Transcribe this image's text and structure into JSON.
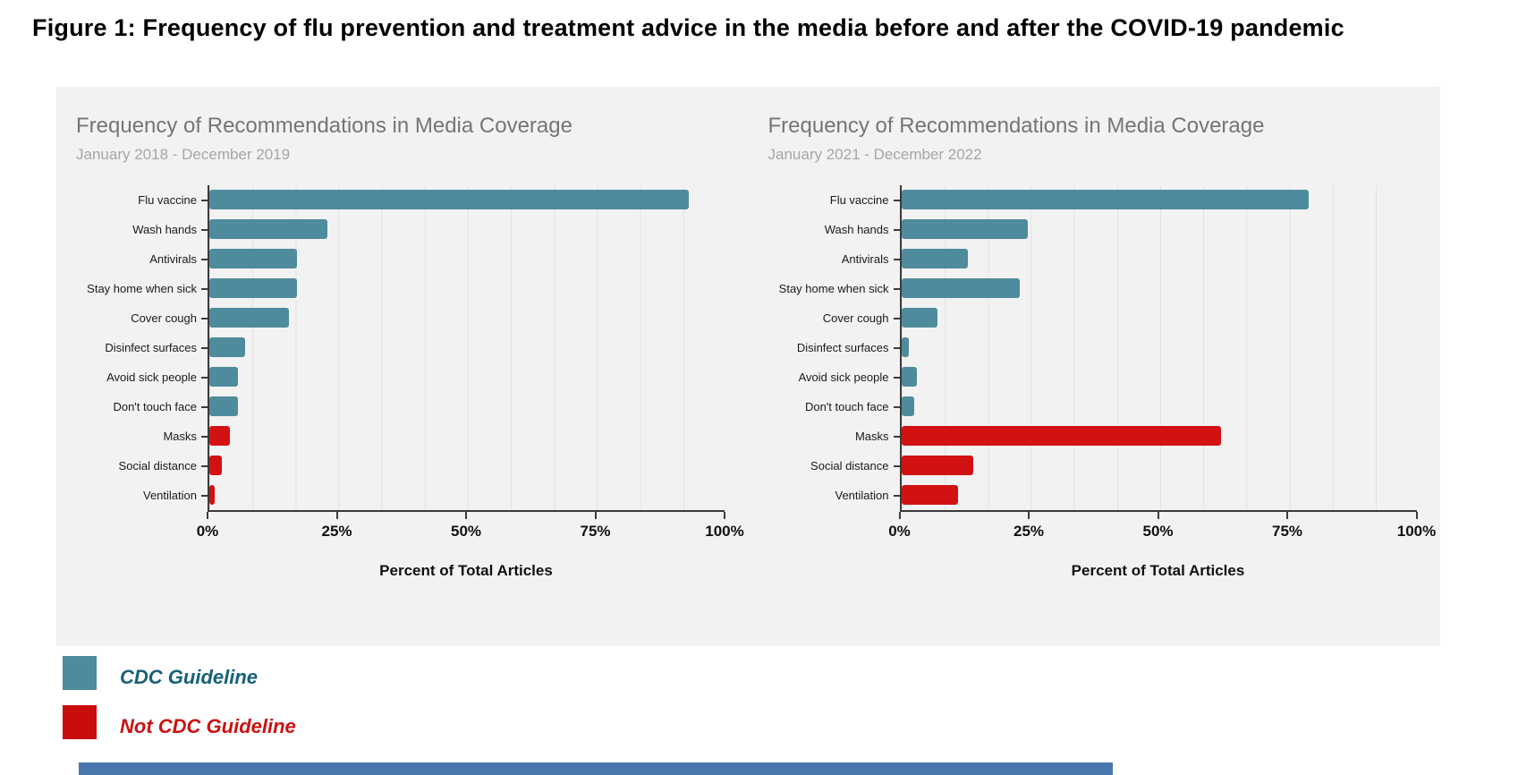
{
  "figure_title": "Figure 1: Frequency of flu prevention and treatment advice in the media before and after the COVID-19 pandemic",
  "colors": {
    "cdc": "#4e8b9c",
    "not_cdc": "#d21212",
    "panel_bg": "#f2f2f2",
    "chart_title_gray": "#757575",
    "chart_subtitle_gray": "#a6a6a6",
    "bottom_bar_blue": "#4a77ae"
  },
  "legend": [
    {
      "label": "CDC Guideline",
      "swatch": "#4e8b9c",
      "text_color": "#16607a"
    },
    {
      "label": "Not CDC Guideline",
      "swatch": "#c90d0d",
      "text_color": "#cc1111"
    }
  ],
  "chart_data": [
    {
      "type": "bar",
      "orientation": "horizontal",
      "title": "Frequency of Recommendations in Media Coverage",
      "subtitle": "January 2018 - December 2019",
      "xlabel": "Percent of Total Articles",
      "xlim": [
        0,
        100
      ],
      "xticks": [
        "0%",
        "25%",
        "50%",
        "75%",
        "100%"
      ],
      "grid": true,
      "categories": [
        "Flu vaccine",
        "Wash hands",
        "Antivirals",
        "Stay home when sick",
        "Cover cough",
        "Disinfect surfaces",
        "Avoid sick people",
        "Don't touch face",
        "Masks",
        "Social distance",
        "Ventilation"
      ],
      "values": [
        93,
        23,
        17,
        17,
        15.5,
        7,
        5.5,
        5.5,
        4,
        2.5,
        1
      ],
      "cdc_guideline": [
        true,
        true,
        true,
        true,
        true,
        true,
        true,
        true,
        false,
        false,
        false
      ]
    },
    {
      "type": "bar",
      "orientation": "horizontal",
      "title": "Frequency of Recommendations in Media Coverage",
      "subtitle": "January 2021 - December 2022",
      "xlabel": "Percent of Total Articles",
      "xlim": [
        0,
        100
      ],
      "xticks": [
        "0%",
        "25%",
        "50%",
        "75%",
        "100%"
      ],
      "grid": true,
      "categories": [
        "Flu vaccine",
        "Wash hands",
        "Antivirals",
        "Stay home when sick",
        "Cover cough",
        "Disinfect surfaces",
        "Avoid sick people",
        "Don't touch face",
        "Masks",
        "Social distance",
        "Ventilation"
      ],
      "values": [
        79,
        24.5,
        13,
        23,
        7,
        1.5,
        3,
        2.5,
        62,
        14,
        11
      ],
      "cdc_guideline": [
        true,
        true,
        true,
        true,
        true,
        true,
        true,
        true,
        false,
        false,
        false
      ]
    }
  ]
}
